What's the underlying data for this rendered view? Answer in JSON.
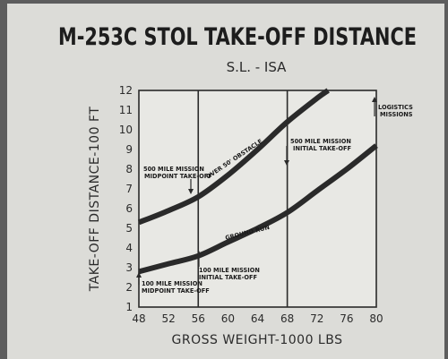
{
  "chart_data": {
    "type": "line",
    "title": "M-253C STOL TAKE-OFF DISTANCE",
    "subtitle": "S.L. - ISA",
    "xlabel": "GROSS WEIGHT-1000 LBS",
    "ylabel": "TAKE-OFF DISTANCE-100 FT",
    "xlim": [
      48,
      80
    ],
    "ylim": [
      1,
      12
    ],
    "xticks": [
      "48",
      "52",
      "56",
      "60",
      "64",
      "68",
      "72",
      "76",
      "80"
    ],
    "yticks": [
      "1",
      "2",
      "3",
      "4",
      "5",
      "6",
      "7",
      "8",
      "9",
      "10",
      "11",
      "12"
    ],
    "grid": false,
    "vlines": [
      56,
      68
    ],
    "series": [
      {
        "name": "OVER 50' OBSTACLE",
        "x": [
          48,
          52,
          56,
          60,
          64,
          68,
          72,
          73.5
        ],
        "y": [
          5.3,
          5.9,
          6.6,
          7.7,
          9.0,
          10.4,
          11.6,
          12.0
        ]
      },
      {
        "name": "GROUND RUN",
        "x": [
          48,
          52,
          56,
          60,
          64,
          68,
          72,
          76,
          80
        ],
        "y": [
          2.8,
          3.2,
          3.6,
          4.3,
          5.0,
          5.8,
          6.9,
          8.0,
          9.2
        ]
      }
    ],
    "annotations": [
      {
        "id": "mid500",
        "lines": [
          "500 MILE MISSION",
          "MIDPOINT TAKE-OFF"
        ],
        "x": 56,
        "y": 6.6
      },
      {
        "id": "init500",
        "lines": [
          "500 MILE MISSION",
          "INITIAL TAKE-OFF"
        ],
        "x": 68,
        "y": 10.4
      },
      {
        "id": "init100",
        "lines": [
          "100 MILE MISSION",
          "INITIAL TAKE-OFF"
        ],
        "x": 56,
        "y": 3.6
      },
      {
        "id": "mid100",
        "lines": [
          "100 MILE MISSION",
          "MIDPOINT TAKE-OFF"
        ],
        "x": 48,
        "y": 2.8
      },
      {
        "id": "logistics",
        "lines": [
          "LOGISTICS",
          "MISSIONS"
        ],
        "x": 80,
        "y": 12
      }
    ]
  },
  "colors": {
    "background": "#5d5d5d",
    "plot_area": "#e8e8e4",
    "curve": "#2a2a2a",
    "text": "#1d1d1d"
  }
}
